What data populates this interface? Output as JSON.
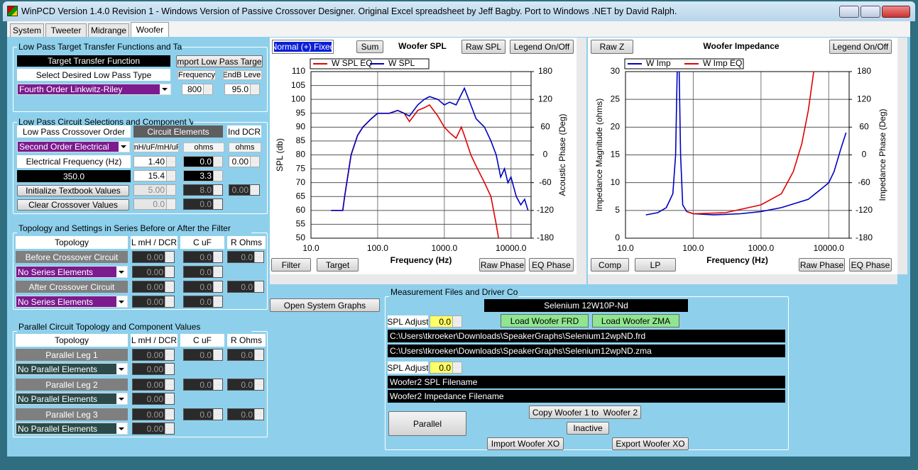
{
  "window": {
    "title": "WinPCD Version 1.4.0 Revision 1 - Windows Version of Passive Crossover Designer. Original Excel spreadsheet by Jeff Bagby. Port to Windows .NET by David Ralph."
  },
  "tabs": [
    "System",
    "Tweeter",
    "Midrange",
    "Woofer"
  ],
  "low_pass_target": {
    "title": "Low Pass Target Transfer Functions and Target",
    "target_transfer_function": "Target Transfer Function",
    "import_button": "Import Low Pass Target",
    "select_type_label": "Select Desired Low Pass Type",
    "frequency_header": "Frequency",
    "level_header": "EndB Level",
    "type": "Fourth Order Linkwitz-Riley",
    "frequency": "800",
    "level": "95.0"
  },
  "circuit": {
    "title": "Low Pass Circuit Selections and Component Values",
    "order_label": "Low Pass Crossover Order",
    "elements_header": "Circuit Elements",
    "dcr_header": "Ind DCR",
    "order": "Second Order Electrical",
    "units": [
      "mH/uF/mH/uF",
      "ohms",
      "ohms"
    ],
    "frequency_label": "Electrical Frequency (Hz)",
    "frequency": "350.0",
    "init_button": "Initialize Textbook Values",
    "clear_button": "Clear Crossover Values",
    "values": [
      [
        "1.40",
        "0.0",
        "0.00"
      ],
      [
        "15.4",
        "3.3"
      ],
      [
        "5.00",
        "8.0",
        "0.00"
      ],
      [
        "0.0",
        "0.0"
      ]
    ]
  },
  "series": {
    "title": "Topology and Settings in Series Before or After the Filter",
    "headers": [
      "Topology",
      "L mH / DCR",
      "C uF",
      "R Ohms"
    ],
    "rows": [
      {
        "label": "Before Crossover Circuit",
        "values": [
          "0.00",
          "0.0",
          "0.0"
        ]
      },
      {
        "label": "No Series Elements",
        "values": [
          "0.00",
          "0.0"
        ]
      },
      {
        "label": "After Crossover Circuit",
        "values": [
          "0.00",
          "0.0",
          "0.0"
        ]
      },
      {
        "label": "No Series Elements",
        "values": [
          "0.00",
          "0.0"
        ]
      }
    ]
  },
  "parallel": {
    "title": "Parallel Circuit Topology and Component Values",
    "headers": [
      "Topology",
      "L mH / DCR",
      "C uF",
      "R Ohms"
    ],
    "rows": [
      {
        "label": "Parallel Leg 1",
        "values": [
          "0.00",
          "0.0",
          "0.0"
        ]
      },
      {
        "label": "No Parallel Elements",
        "values": [
          "0.00"
        ]
      },
      {
        "label": "Parallel Leg 2",
        "values": [
          "0.00",
          "0.0",
          "0.0"
        ]
      },
      {
        "label": "No Parallel Elements",
        "values": [
          "0.00"
        ]
      },
      {
        "label": "Parallel Leg 3",
        "values": [
          "0.00",
          "0.0",
          "0.0"
        ]
      },
      {
        "label": "No Parallel Elements",
        "values": [
          "0.00"
        ]
      }
    ]
  },
  "chart_controls": [
    {
      "mode": "Normal (+) Fixed",
      "buttons": [
        "Sum",
        "Raw SPL",
        "Legend On/Off"
      ],
      "bottom_buttons": [
        "Filter",
        "Target",
        "Raw Phase",
        "EQ Phase"
      ]
    },
    {
      "buttons": [
        "Raw Z",
        "Legend On/Off"
      ],
      "bottom_buttons": [
        "Comp",
        "LP",
        "Raw Phase",
        "EQ Phase"
      ]
    }
  ],
  "chart_data": [
    {
      "type": "line",
      "title": "Woofer SPL",
      "x_label": "Frequency (Hz)",
      "y_label": "SPL (db)",
      "y2_label": "Acoustic Phase (Deg)",
      "xscale": "log",
      "grid": true,
      "xlim": [
        10,
        20000
      ],
      "xticks": [
        {
          "value": 10,
          "label": "10.0"
        },
        {
          "value": 100,
          "label": "100.0"
        },
        {
          "value": 1000,
          "label": "1000.0"
        },
        {
          "value": 10000,
          "label": "10000.0"
        }
      ],
      "ylim": [
        50,
        110
      ],
      "yticks": [
        50,
        55,
        60,
        65,
        70,
        75,
        80,
        85,
        90,
        95,
        100,
        105,
        110
      ],
      "y2lim": [
        -180,
        180
      ],
      "y2ticks": [
        -180,
        -120,
        -60,
        0,
        60,
        120,
        180
      ],
      "series": [
        {
          "name": "W SPL EQ",
          "color": "#e00000",
          "x": [
            20,
            30,
            32,
            40,
            50,
            60,
            80,
            100,
            150,
            200,
            250,
            300,
            400,
            500,
            600,
            800,
            1000,
            1200,
            1500,
            1800,
            2000,
            2500,
            3000,
            4000,
            5000,
            6000,
            6500
          ],
          "values": [
            60,
            60,
            65,
            80,
            87,
            90,
            93,
            95,
            95,
            96,
            95,
            92,
            96,
            97,
            98,
            94,
            90,
            88,
            86,
            90,
            87,
            80,
            76,
            70,
            65,
            55,
            50
          ]
        },
        {
          "name": "W SPL",
          "color": "#0000c0",
          "x": [
            20,
            30,
            32,
            40,
            50,
            60,
            80,
            100,
            150,
            200,
            250,
            300,
            400,
            500,
            600,
            800,
            1000,
            1200,
            1500,
            2000,
            2500,
            3000,
            4000,
            5000,
            6000,
            7000,
            8000,
            9000,
            10000,
            12000,
            14000,
            16000,
            18000
          ],
          "values": [
            60,
            60,
            65,
            80,
            87,
            90,
            93,
            95,
            95,
            96,
            95,
            94,
            98,
            100,
            101,
            100,
            98,
            99,
            98,
            104,
            98,
            93,
            90,
            85,
            80,
            72,
            75,
            70,
            72,
            65,
            62,
            64,
            60
          ]
        }
      ]
    },
    {
      "type": "line",
      "title": "Woofer Impedance",
      "x_label": "Frequency (Hz)",
      "y_label": "Impedance Magnitude (ohms)",
      "y2_label": "Impedance Phase (Deg)",
      "xscale": "log",
      "grid": true,
      "xlim": [
        10,
        20000
      ],
      "xticks": [
        {
          "value": 10,
          "label": "10.0"
        },
        {
          "value": 100,
          "label": "100.0"
        },
        {
          "value": 1000,
          "label": "1000.0"
        },
        {
          "value": 10000,
          "label": "10000.0"
        }
      ],
      "ylim": [
        0,
        30
      ],
      "yticks": [
        0,
        5,
        10,
        15,
        20,
        25,
        30
      ],
      "y2lim": [
        -180,
        180
      ],
      "y2ticks": [
        -180,
        -120,
        -60,
        0,
        60,
        120,
        180
      ],
      "series": [
        {
          "name": "W Imp",
          "color": "#0000c0",
          "x": [
            20,
            30,
            40,
            50,
            55,
            60,
            65,
            70,
            80,
            100,
            200,
            500,
            1000,
            2000,
            5000,
            8000,
            10000,
            12000,
            15000,
            18000
          ],
          "values": [
            4.2,
            4.6,
            5.5,
            8,
            15,
            40,
            15,
            6,
            4.8,
            4.4,
            4.2,
            4.4,
            4.8,
            5.5,
            7,
            9,
            10,
            12,
            16,
            19
          ]
        },
        {
          "name": "W Imp EQ",
          "color": "#e00000",
          "x": [
            80,
            100,
            300,
            1000,
            2000,
            3000,
            4000,
            5000,
            6000
          ],
          "values": [
            4.8,
            4.4,
            4.6,
            6,
            8,
            12,
            17,
            23,
            30
          ]
        }
      ]
    }
  ],
  "measurement": {
    "title": "Measurement Files and Driver Control",
    "open_system_graphs": "Open System Graphs",
    "driver": "Selenium 12W10P-Nd",
    "load_frd": "Load Woofer FRD",
    "load_zma": "Load Woofer ZMA",
    "spl_adjust_label": "SPL Adjust",
    "spl_adjust": "0.0",
    "frd_path": "C:\\Users\\tkroeker\\Downloads\\SpeakerGraphs\\Selenium12wpND.frd",
    "zma_path": "C:\\Users\\tkroeker\\Downloads\\SpeakerGraphs\\Selenium12wpND.zma",
    "spl_adjust2_label": "SPL Adjust",
    "spl_adjust2": "0.0",
    "woofer2_spl": "Woofer2 SPL Filename",
    "woofer2_imp": "Woofer2 Impedance Filename",
    "copy": "Copy Woofer 1 to  Woofer 2",
    "parallel": "Parallel",
    "inactive": "Inactive",
    "import_xo": "Import Woofer XO",
    "export_xo": "Export Woofer XO"
  }
}
